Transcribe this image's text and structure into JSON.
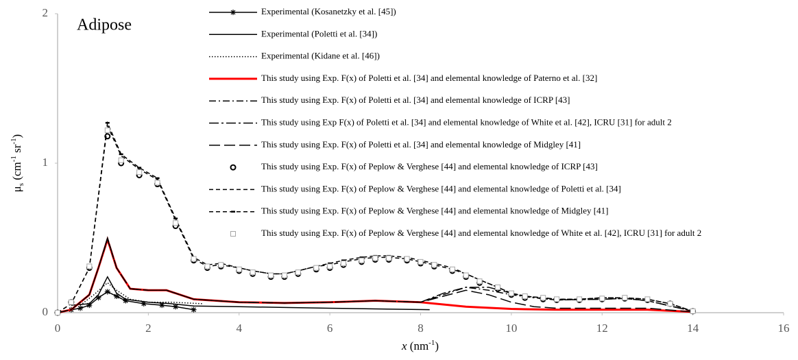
{
  "chart_data": {
    "type": "line",
    "annotation": "Adipose",
    "x_label_parts": [
      "x",
      " (nm",
      "-1",
      ")"
    ],
    "y_label_parts": [
      "μ",
      "s",
      " (cm",
      "-1",
      " sr",
      "-1",
      ")"
    ],
    "xlim": [
      0,
      16
    ],
    "xticks": [
      0,
      2,
      4,
      6,
      8,
      10,
      12,
      14,
      16
    ],
    "ylim": [
      0,
      2
    ],
    "yticks": [
      0,
      1,
      2
    ],
    "series": [
      {
        "name": "Experimental (Kosanetzky et al. [45])",
        "color": "#000000",
        "line_style": "solid",
        "marker": "star",
        "x": [
          0.3,
          0.5,
          0.7,
          0.9,
          1.1,
          1.3,
          1.5,
          1.9,
          2.3,
          2.6,
          3.0
        ],
        "values": [
          0.02,
          0.03,
          0.05,
          0.1,
          0.14,
          0.11,
          0.08,
          0.06,
          0.05,
          0.04,
          0.02
        ]
      },
      {
        "name": "Experimental (Poletti et al. [34])",
        "color": "#000000",
        "line_style": "solid",
        "marker": "none",
        "x": [
          0.3,
          0.7,
          0.9,
          1.1,
          1.3,
          1.5,
          2,
          2.5,
          3,
          4,
          5,
          6,
          7,
          8.2
        ],
        "values": [
          0.05,
          0.06,
          0.12,
          0.24,
          0.13,
          0.09,
          0.07,
          0.06,
          0.045,
          0.04,
          0.035,
          0.03,
          0.025,
          0.02
        ]
      },
      {
        "name": "Experimental (Kidane et al. [46])",
        "color": "#000000",
        "line_style": "dotted",
        "marker": "none",
        "x": [
          0.5,
          0.8,
          1.1,
          1.3,
          1.6,
          2,
          2.5,
          3.2
        ],
        "values": [
          0.05,
          0.12,
          0.2,
          0.15,
          0.09,
          0.07,
          0.07,
          0.06
        ]
      },
      {
        "name": "This study using Exp. F(x) of Poletti et al. [34] and elemental knowledge of Paterno et al. [32]",
        "color": "#ff0000",
        "line_style": "solid-thick",
        "marker": "none",
        "x": [
          0,
          0.3,
          0.7,
          0.9,
          1.1,
          1.3,
          1.6,
          2,
          2.4,
          3,
          4,
          5,
          6,
          7,
          8,
          9,
          10,
          11,
          12,
          13,
          14
        ],
        "values": [
          0,
          0.02,
          0.12,
          0.3,
          0.49,
          0.3,
          0.16,
          0.15,
          0.15,
          0.09,
          0.07,
          0.065,
          0.07,
          0.08,
          0.07,
          0.04,
          0.025,
          0.02,
          0.02,
          0.02,
          0.005
        ]
      },
      {
        "name": "This study using Exp. F(x) of Poletti et al. [34] and elemental knowledge of ICRP [43]",
        "color": "#000000",
        "line_style": "dash-dot",
        "marker": "none",
        "x": [
          0,
          0.3,
          0.7,
          0.9,
          1.1,
          1.3,
          1.6,
          2,
          2.4,
          3,
          4,
          5,
          6,
          7,
          8,
          8.5,
          9,
          9.5,
          10,
          10.5,
          11,
          12,
          12.5,
          13,
          14
        ],
        "values": [
          0,
          0.02,
          0.12,
          0.3,
          0.49,
          0.3,
          0.16,
          0.15,
          0.15,
          0.09,
          0.07,
          0.065,
          0.07,
          0.08,
          0.07,
          0.12,
          0.17,
          0.15,
          0.12,
          0.1,
          0.085,
          0.09,
          0.095,
          0.08,
          0.01
        ]
      },
      {
        "name": "This study using Exp F(x) of Poletti et al. [34] and elemental knowledge of White et al. [42], ICRU [31] for adult 2",
        "color": "#000000",
        "line_style": "dash-dot-long",
        "marker": "none",
        "x": [
          0,
          0.3,
          0.7,
          0.9,
          1.1,
          1.3,
          1.6,
          2,
          2.4,
          3,
          4,
          5,
          6,
          7,
          8,
          8.5,
          9,
          9.5,
          10,
          10.5,
          11,
          12,
          12.5,
          13,
          14
        ],
        "values": [
          0,
          0.02,
          0.12,
          0.3,
          0.5,
          0.3,
          0.16,
          0.15,
          0.15,
          0.09,
          0.07,
          0.065,
          0.07,
          0.08,
          0.07,
          0.13,
          0.17,
          0.17,
          0.13,
          0.1,
          0.085,
          0.09,
          0.095,
          0.08,
          0.01
        ]
      },
      {
        "name": "This study using Exp. F(x) of Poletti et al. [34] and elemental knowledge of Midgley [41]",
        "color": "#000000",
        "line_style": "long-dash",
        "marker": "none",
        "x": [
          0,
          0.3,
          0.7,
          0.9,
          1.1,
          1.3,
          1.6,
          2,
          2.4,
          3,
          4,
          5,
          6,
          7,
          8,
          8.5,
          9,
          9.5,
          10,
          10.5,
          11,
          12,
          13,
          14
        ],
        "values": [
          0,
          0.02,
          0.12,
          0.3,
          0.5,
          0.3,
          0.16,
          0.15,
          0.15,
          0.09,
          0.07,
          0.065,
          0.07,
          0.08,
          0.07,
          0.11,
          0.15,
          0.12,
          0.07,
          0.04,
          0.03,
          0.03,
          0.03,
          0.005
        ]
      },
      {
        "name": "This study using Exp. F(x) of Peplow & Verghese [44] and elemental knowledge of ICRP [43]",
        "color": "#000000",
        "line_style": "none",
        "marker": "circle",
        "x": [
          0,
          0.3,
          0.7,
          1.1,
          1.4,
          1.8,
          2.2,
          2.6,
          3,
          3.3,
          3.6,
          4,
          4.3,
          4.7,
          5,
          5.3,
          5.7,
          6,
          6.3,
          6.7,
          7,
          7.3,
          7.7,
          8,
          8.3,
          8.7,
          9,
          9.3,
          9.7,
          10,
          10.3,
          10.7,
          11,
          11.5,
          12,
          12.5,
          13,
          13.5,
          14
        ],
        "values": [
          0,
          0.07,
          0.3,
          1.18,
          1.0,
          0.92,
          0.86,
          0.58,
          0.35,
          0.3,
          0.31,
          0.28,
          0.26,
          0.24,
          0.24,
          0.26,
          0.29,
          0.3,
          0.32,
          0.34,
          0.355,
          0.355,
          0.35,
          0.33,
          0.31,
          0.28,
          0.24,
          0.2,
          0.16,
          0.12,
          0.1,
          0.09,
          0.085,
          0.085,
          0.09,
          0.095,
          0.085,
          0.06,
          0.01
        ]
      },
      {
        "name": "This study using Exp. F(x) of Peplow & Verghese [44] and elemental knowledge of Poletti et al. [34]",
        "color": "#000000",
        "line_style": "dashed",
        "marker": "none",
        "x": [
          0,
          0.3,
          0.7,
          1.1,
          1.4,
          1.8,
          2.2,
          2.6,
          3,
          3.3,
          3.6,
          4,
          4.3,
          4.7,
          5,
          5.3,
          5.7,
          6,
          6.3,
          6.7,
          7,
          7.3,
          7.7,
          8,
          8.3,
          8.7,
          9,
          9.3,
          9.7,
          10,
          10.3,
          10.7,
          11,
          11.5,
          12,
          12.5,
          13,
          13.5,
          14
        ],
        "values": [
          0,
          0.06,
          0.3,
          1.25,
          1.05,
          0.96,
          0.89,
          0.62,
          0.36,
          0.31,
          0.32,
          0.3,
          0.28,
          0.26,
          0.26,
          0.28,
          0.31,
          0.32,
          0.34,
          0.36,
          0.37,
          0.37,
          0.36,
          0.34,
          0.32,
          0.29,
          0.26,
          0.22,
          0.17,
          0.13,
          0.11,
          0.1,
          0.09,
          0.09,
          0.1,
          0.1,
          0.09,
          0.06,
          0.01
        ]
      },
      {
        "name": "This study using Exp. F(x) of Peplow & Verghese [44] and elemental knowledge of Midgley [41]",
        "color": "#000000",
        "line_style": "dashed",
        "marker": "dash",
        "x": [
          0,
          0.3,
          0.7,
          1.1,
          1.4,
          1.8,
          2.2,
          2.6,
          3,
          3.3,
          3.6,
          4,
          4.3,
          4.7,
          5,
          5.3,
          5.7,
          6,
          6.3,
          6.7,
          7,
          7.3,
          7.7,
          8,
          8.3,
          8.7,
          9,
          9.3,
          9.7,
          10,
          10.3,
          10.7,
          11,
          11.5,
          12,
          12.5,
          13,
          13.5,
          14
        ],
        "values": [
          0,
          0.06,
          0.3,
          1.27,
          1.06,
          0.97,
          0.9,
          0.63,
          0.37,
          0.32,
          0.33,
          0.3,
          0.28,
          0.26,
          0.26,
          0.28,
          0.31,
          0.33,
          0.35,
          0.37,
          0.38,
          0.38,
          0.37,
          0.35,
          0.33,
          0.3,
          0.26,
          0.22,
          0.17,
          0.13,
          0.11,
          0.1,
          0.09,
          0.09,
          0.1,
          0.1,
          0.09,
          0.06,
          0.01
        ]
      },
      {
        "name": "This study using Exp. F(x) of Peplow & Verghese [44] and elemental knowledge of White et al. [42], ICRU [31] for adult 2",
        "color": "#a6a6a6",
        "line_style": "none",
        "marker": "square",
        "x": [
          0,
          0.3,
          0.7,
          1.1,
          1.4,
          1.8,
          2.2,
          2.6,
          3,
          3.3,
          3.6,
          4,
          4.3,
          4.7,
          5,
          5.3,
          5.7,
          6,
          6.3,
          6.7,
          7,
          7.3,
          7.7,
          8,
          8.3,
          8.7,
          9,
          9.3,
          9.7,
          10,
          10.3,
          10.7,
          11,
          11.5,
          12,
          12.5,
          13,
          13.5,
          14
        ],
        "values": [
          0,
          0.07,
          0.31,
          1.22,
          1.02,
          0.94,
          0.87,
          0.6,
          0.36,
          0.31,
          0.32,
          0.29,
          0.27,
          0.25,
          0.25,
          0.27,
          0.3,
          0.31,
          0.33,
          0.35,
          0.365,
          0.365,
          0.36,
          0.34,
          0.32,
          0.29,
          0.25,
          0.21,
          0.17,
          0.13,
          0.11,
          0.1,
          0.09,
          0.09,
          0.095,
          0.1,
          0.09,
          0.06,
          0.01
        ]
      }
    ]
  }
}
